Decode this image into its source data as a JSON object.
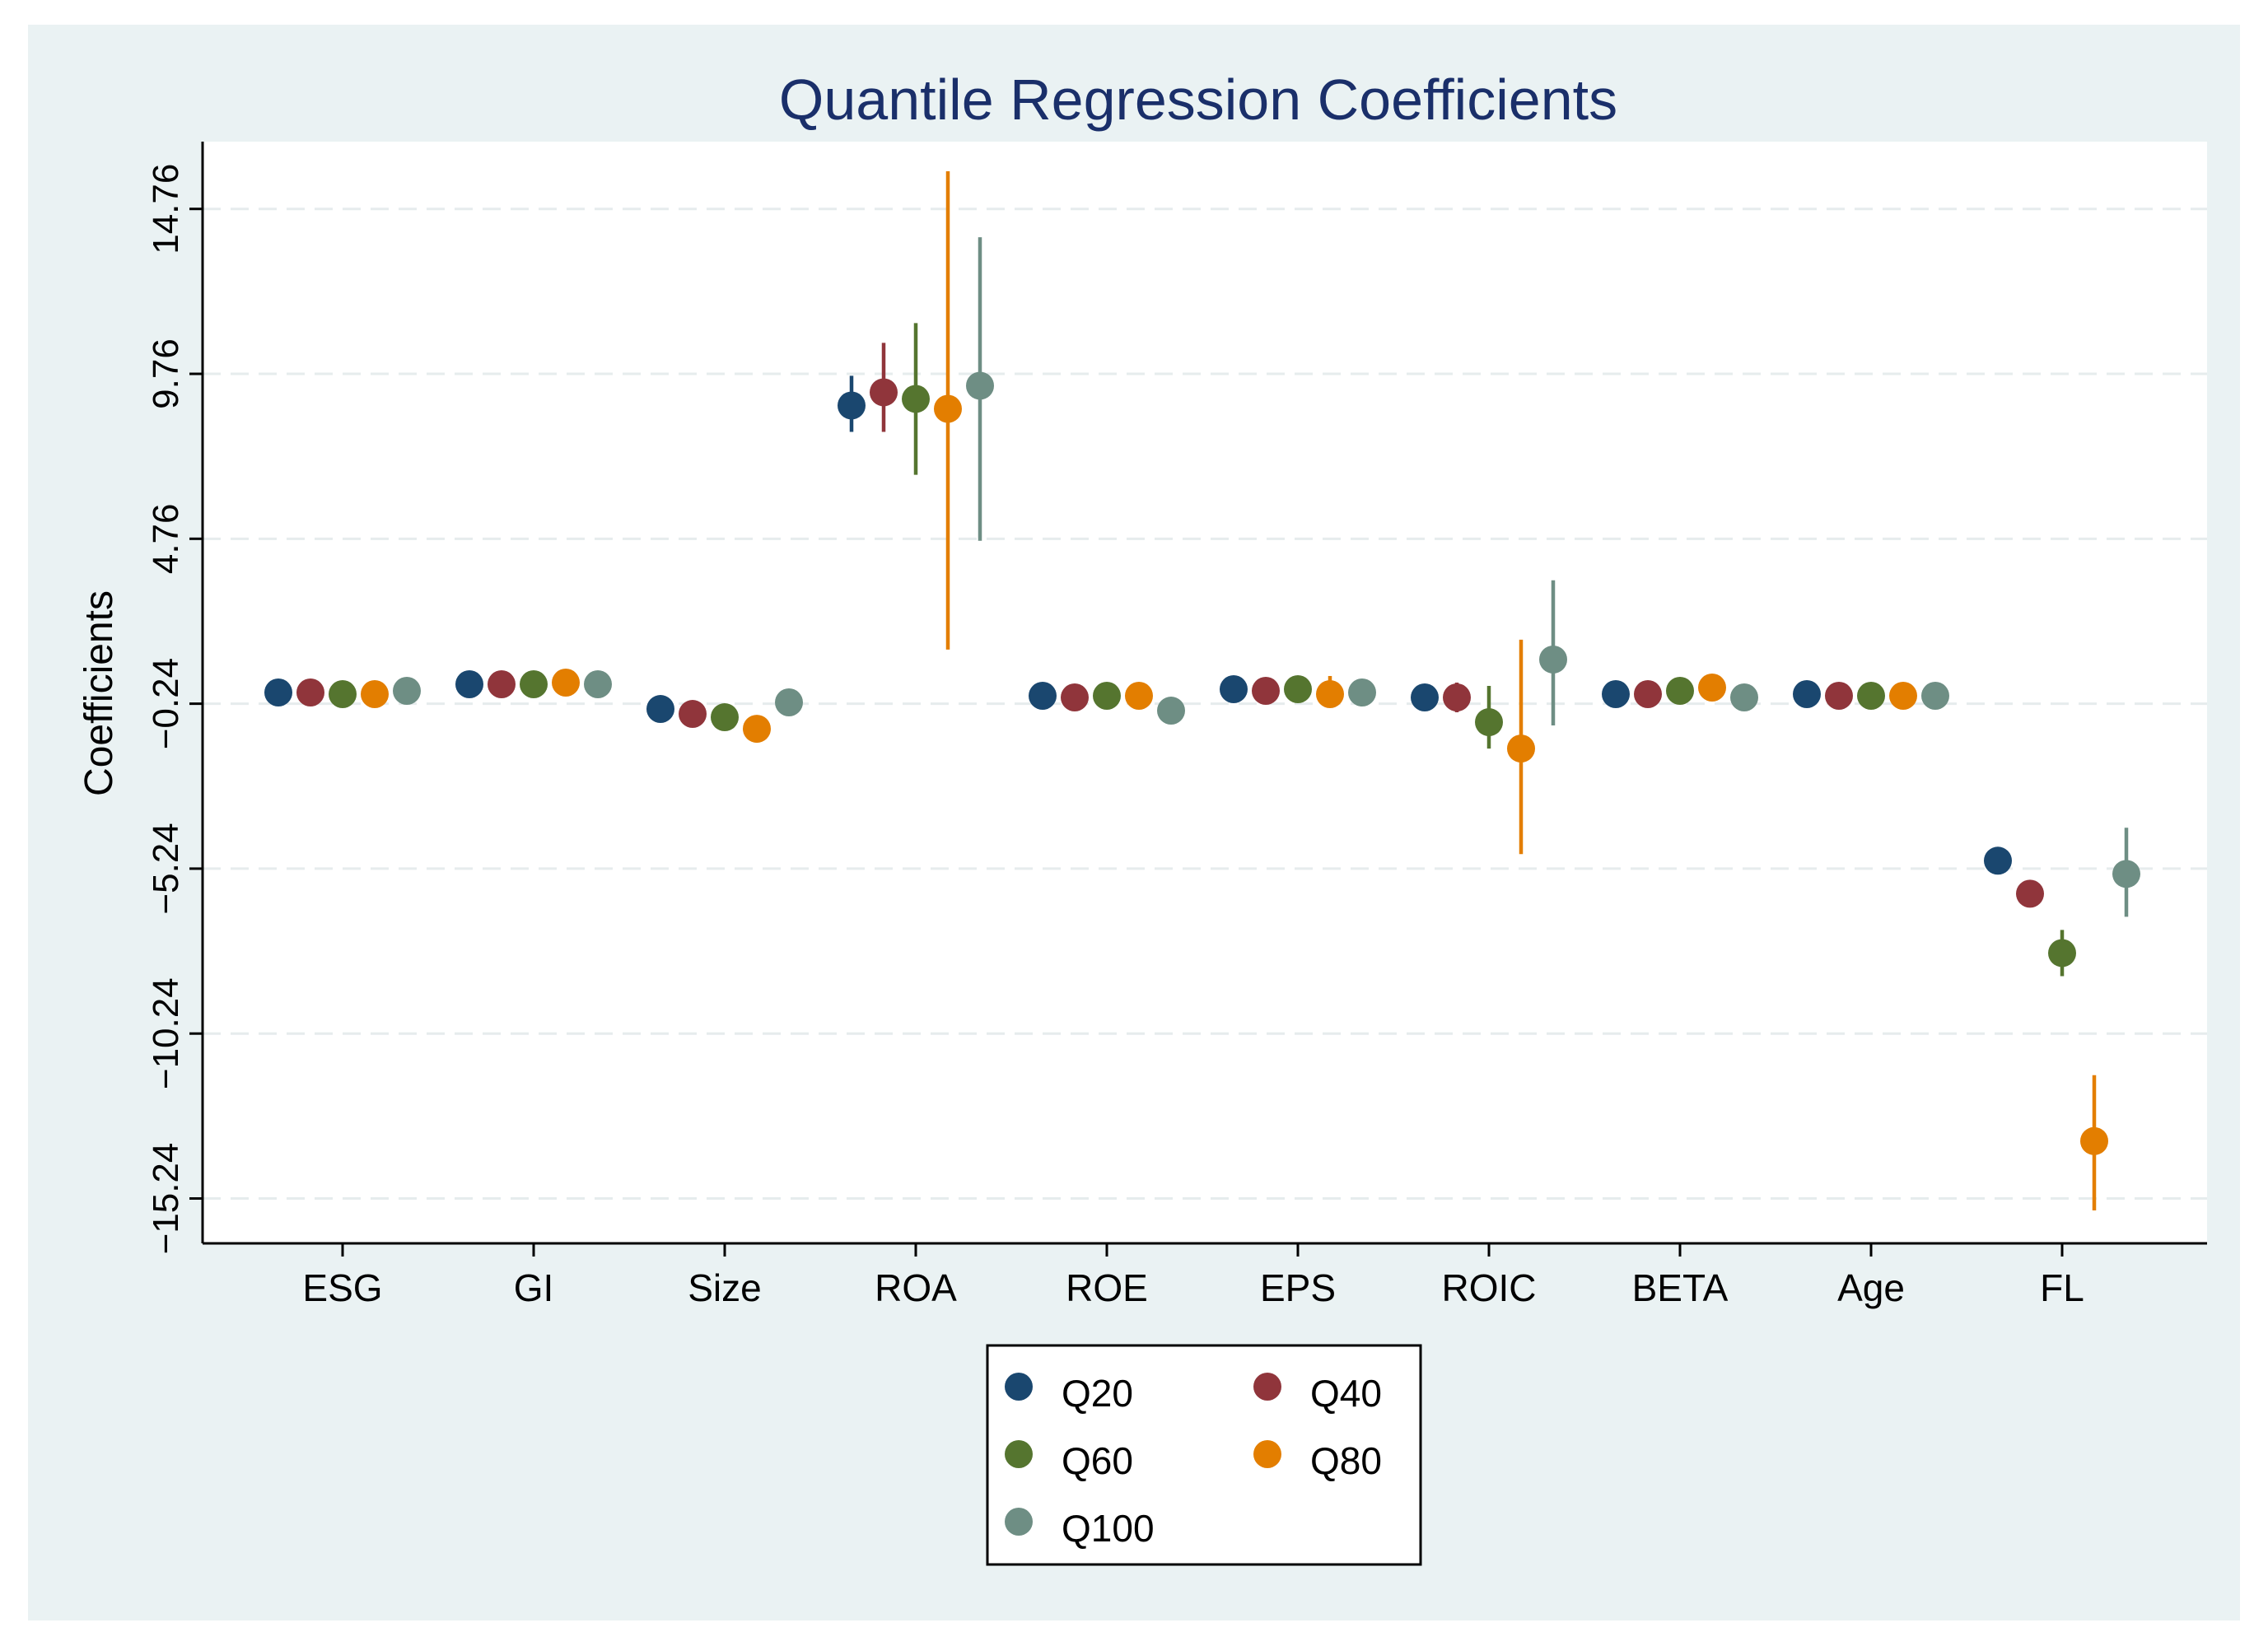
{
  "chart_data": {
    "type": "scatter",
    "subtype": "coefficient-plot-with-confidence-intervals",
    "title": "Quantile Regression Coefficients",
    "xlabel": "",
    "ylabel": "Coefficients",
    "ylim": [
      -16.6,
      16.8
    ],
    "yticks": [
      14.76,
      9.76,
      4.76,
      -0.24,
      -5.24,
      -10.24,
      -15.24
    ],
    "ytick_labels": [
      "14.76",
      "9.76",
      "4.76",
      "−0.24",
      "−5.24",
      "−10.24",
      "−15.24"
    ],
    "grid": true,
    "legend_position": "bottom-center",
    "categories": [
      "ESG",
      "GI",
      "Size",
      "ROA",
      "ROE",
      "EPS",
      "ROIC",
      "BETA",
      "Age",
      "FL"
    ],
    "series": [
      {
        "name": "Q20",
        "color": "#1a476f",
        "values": [
          0.1,
          0.35,
          -0.4,
          8.8,
          0.0,
          0.2,
          -0.05,
          0.05,
          0.05,
          -5.0
        ],
        "ci_low": [
          0.1,
          0.35,
          -0.4,
          8.0,
          0.0,
          0.2,
          -0.05,
          0.05,
          0.05,
          -5.0
        ],
        "ci_high": [
          0.1,
          0.35,
          -0.4,
          9.7,
          0.0,
          0.2,
          -0.05,
          0.05,
          0.05,
          -5.0
        ]
      },
      {
        "name": "Q40",
        "color": "#90353b",
        "values": [
          0.1,
          0.35,
          -0.55,
          9.2,
          -0.05,
          0.15,
          -0.05,
          0.05,
          0.0,
          -6.0
        ],
        "ci_low": [
          0.1,
          0.35,
          -0.55,
          8.0,
          -0.05,
          0.15,
          -0.5,
          0.05,
          0.0,
          -6.0
        ],
        "ci_high": [
          0.1,
          0.35,
          -0.55,
          10.7,
          -0.05,
          0.15,
          0.4,
          0.05,
          0.0,
          -6.0
        ]
      },
      {
        "name": "Q60",
        "color": "#55752f",
        "values": [
          0.05,
          0.35,
          -0.65,
          9.0,
          0.0,
          0.2,
          -0.8,
          0.15,
          0.0,
          -7.8
        ],
        "ci_low": [
          0.05,
          0.35,
          -0.65,
          6.7,
          0.0,
          0.2,
          -1.6,
          0.15,
          0.0,
          -8.5
        ],
        "ci_high": [
          0.05,
          0.35,
          -0.65,
          11.3,
          0.0,
          0.2,
          0.3,
          0.15,
          0.0,
          -7.1
        ]
      },
      {
        "name": "Q80",
        "color": "#e37e00",
        "values": [
          0.05,
          0.4,
          -1.0,
          8.7,
          0.0,
          0.05,
          -1.6,
          0.25,
          0.0,
          -13.5
        ],
        "ci_low": [
          0.05,
          0.4,
          -1.0,
          1.4,
          0.0,
          -0.3,
          -4.8,
          -0.1,
          0.0,
          -15.6
        ],
        "ci_high": [
          0.05,
          0.4,
          -1.0,
          15.9,
          0.0,
          0.6,
          1.7,
          0.6,
          0.0,
          -11.5
        ]
      },
      {
        "name": "Q100",
        "color": "#6e8e84",
        "values": [
          0.15,
          0.35,
          -0.2,
          9.4,
          -0.45,
          0.1,
          1.1,
          -0.05,
          0.0,
          -5.4
        ],
        "ci_low": [
          0.15,
          0.35,
          -0.2,
          4.7,
          -0.45,
          0.1,
          -0.9,
          -0.05,
          0.0,
          -6.7
        ],
        "ci_high": [
          0.15,
          0.35,
          -0.2,
          13.9,
          -0.45,
          0.1,
          3.5,
          -0.05,
          0.0,
          -4.0
        ]
      }
    ]
  }
}
